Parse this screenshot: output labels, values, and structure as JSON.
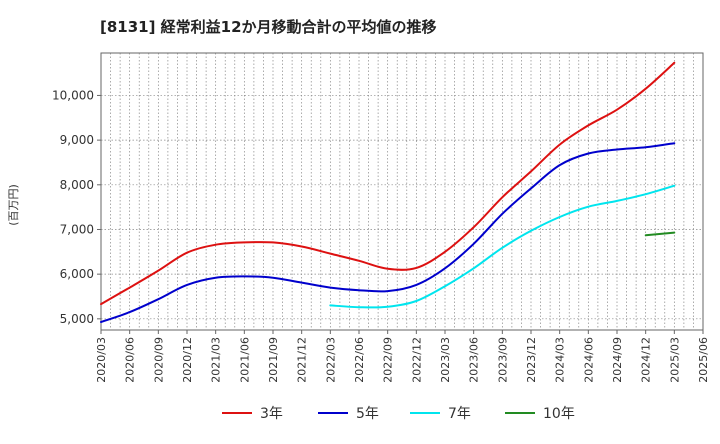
{
  "chart_data": {
    "type": "line",
    "title": "[8131]  経常利益12か月移動合計の平均値の推移",
    "ylabel": "(百万円)",
    "ylim": [
      4750,
      10950
    ],
    "yticks": [
      5000,
      6000,
      7000,
      8000,
      9000,
      10000
    ],
    "ytick_labels": [
      "5,000",
      "6,000",
      "7,000",
      "8,000",
      "9,000",
      "10,000"
    ],
    "x_range": [
      "2020/03",
      "2025/06"
    ],
    "x_ticks": [
      "2020/03",
      "2020/06",
      "2020/09",
      "2020/12",
      "2021/03",
      "2021/06",
      "2021/09",
      "2021/12",
      "2022/03",
      "2022/06",
      "2022/09",
      "2022/12",
      "2023/03",
      "2023/06",
      "2023/09",
      "2023/12",
      "2024/03",
      "2024/06",
      "2024/09",
      "2024/12",
      "2025/03",
      "2025/06"
    ],
    "grid": true,
    "legend_position": "bottom",
    "series": [
      {
        "name": "3年",
        "color": "#dd1111",
        "points": [
          [
            "2020/03",
            5330
          ],
          [
            "2020/06",
            5700
          ],
          [
            "2020/09",
            6080
          ],
          [
            "2020/12",
            6480
          ],
          [
            "2021/03",
            6660
          ],
          [
            "2021/06",
            6710
          ],
          [
            "2021/09",
            6710
          ],
          [
            "2021/12",
            6620
          ],
          [
            "2022/03",
            6460
          ],
          [
            "2022/06",
            6300
          ],
          [
            "2022/09",
            6120
          ],
          [
            "2022/12",
            6140
          ],
          [
            "2023/03",
            6500
          ],
          [
            "2023/06",
            7050
          ],
          [
            "2023/09",
            7720
          ],
          [
            "2023/12",
            8300
          ],
          [
            "2024/03",
            8900
          ],
          [
            "2024/06",
            9330
          ],
          [
            "2024/09",
            9680
          ],
          [
            "2024/12",
            10150
          ],
          [
            "2025/03",
            10730
          ]
        ]
      },
      {
        "name": "5年",
        "color": "#0000cc",
        "points": [
          [
            "2020/03",
            4930
          ],
          [
            "2020/06",
            5150
          ],
          [
            "2020/09",
            5440
          ],
          [
            "2020/12",
            5760
          ],
          [
            "2021/03",
            5920
          ],
          [
            "2021/06",
            5950
          ],
          [
            "2021/09",
            5920
          ],
          [
            "2021/12",
            5810
          ],
          [
            "2022/03",
            5700
          ],
          [
            "2022/06",
            5640
          ],
          [
            "2022/09",
            5620
          ],
          [
            "2022/12",
            5760
          ],
          [
            "2023/03",
            6130
          ],
          [
            "2023/06",
            6680
          ],
          [
            "2023/09",
            7350
          ],
          [
            "2023/12",
            7920
          ],
          [
            "2024/03",
            8440
          ],
          [
            "2024/06",
            8700
          ],
          [
            "2024/09",
            8790
          ],
          [
            "2024/12",
            8840
          ],
          [
            "2025/03",
            8930
          ]
        ]
      },
      {
        "name": "7年",
        "color": "#00e5ee",
        "points": [
          [
            "2022/03",
            5300
          ],
          [
            "2022/06",
            5260
          ],
          [
            "2022/09",
            5270
          ],
          [
            "2022/12",
            5400
          ],
          [
            "2023/03",
            5730
          ],
          [
            "2023/06",
            6130
          ],
          [
            "2023/09",
            6590
          ],
          [
            "2023/12",
            6970
          ],
          [
            "2024/03",
            7280
          ],
          [
            "2024/06",
            7510
          ],
          [
            "2024/09",
            7640
          ],
          [
            "2024/12",
            7790
          ],
          [
            "2025/03",
            7980
          ]
        ]
      },
      {
        "name": "10年",
        "color": "#228b22",
        "points": [
          [
            "2024/12",
            6870
          ],
          [
            "2025/03",
            6930
          ]
        ]
      }
    ]
  }
}
